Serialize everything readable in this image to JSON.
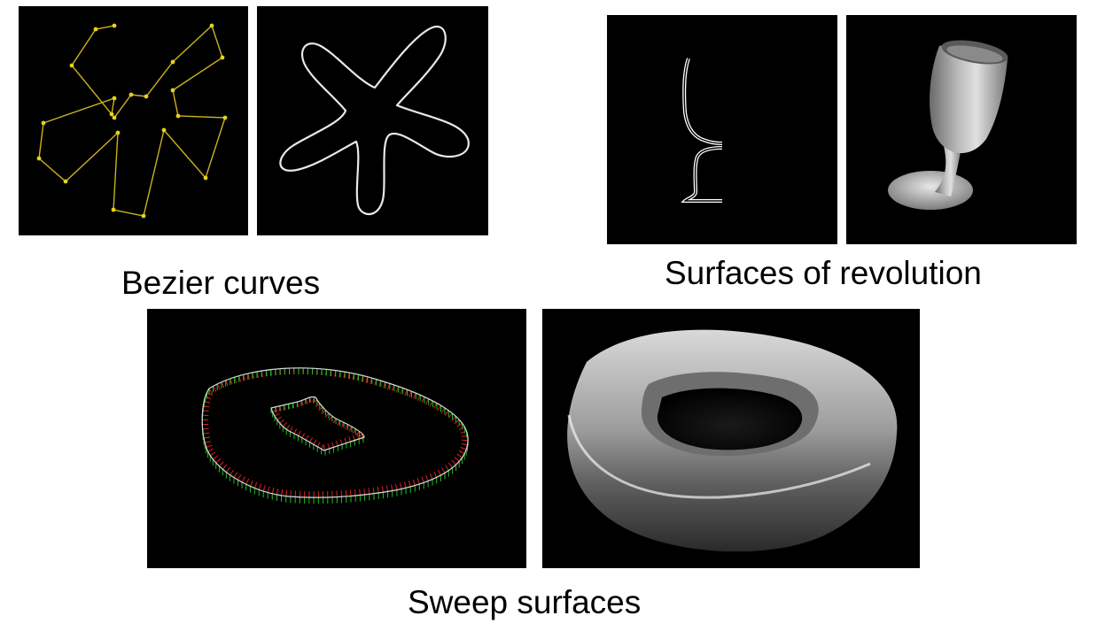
{
  "captions": {
    "bezier": "Bezier curves",
    "revolution": "Surfaces of revolution",
    "sweep": "Sweep surfaces"
  },
  "colors": {
    "background": "#000000",
    "control_polygon": "#c9b21f",
    "control_point": "#e6d21a",
    "curve": "#ffffff",
    "surface_gray": "#9a9a9a",
    "frame_red": "#e02020",
    "frame_green": "#20c020",
    "frame_blue": "#3040ff"
  }
}
